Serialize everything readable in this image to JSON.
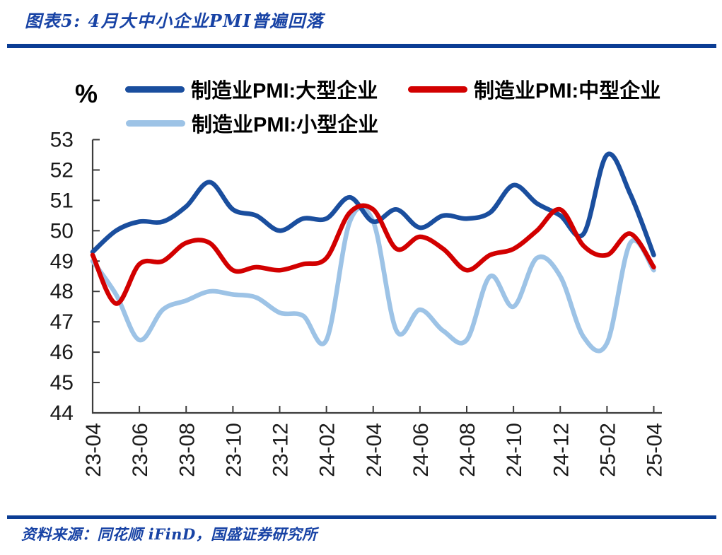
{
  "header": {
    "title": "图表5: 4月大中小企业PMI普遍回落"
  },
  "footer": {
    "source": "资料来源：同花顺 iFinD，国盛证券研究所"
  },
  "styles": {
    "rule_color": "#0B3D94",
    "title_color": "#1843A5",
    "axis_color": "#3C3C3C",
    "tick_label_color": "#1A1A1A"
  },
  "chart_data": {
    "type": "line",
    "title": "图表5: 4月大中小企业PMI普遍回落",
    "unit_label": "%",
    "xlabel": "",
    "ylabel": "%",
    "ylim": [
      44,
      53
    ],
    "ytick_interval": 1,
    "xtick_every": 2,
    "grid": false,
    "legend_position": "top-left",
    "categories": [
      "23-04",
      "23-05",
      "23-06",
      "23-07",
      "23-08",
      "23-09",
      "23-10",
      "23-11",
      "23-12",
      "24-01",
      "24-02",
      "24-03",
      "24-04",
      "24-05",
      "24-06",
      "24-07",
      "24-08",
      "24-09",
      "24-10",
      "24-11",
      "24-12",
      "25-01",
      "25-02",
      "25-03",
      "25-04"
    ],
    "x_tick_labels": [
      "23-04",
      "23-06",
      "23-08",
      "23-10",
      "23-12",
      "24-02",
      "24-04",
      "24-06",
      "24-08",
      "24-10",
      "24-12",
      "25-02",
      "25-04"
    ],
    "series": [
      {
        "name": "制造业PMI:大型企业",
        "color": "#1A4E9E",
        "values": [
          49.3,
          50.0,
          50.3,
          50.3,
          50.8,
          51.6,
          50.7,
          50.5,
          50.0,
          50.4,
          50.4,
          51.1,
          50.3,
          50.7,
          50.1,
          50.5,
          50.4,
          50.6,
          51.5,
          50.9,
          50.5,
          49.9,
          52.5,
          51.2,
          49.2
        ]
      },
      {
        "name": "制造业PMI:中型企业",
        "color": "#D20000",
        "values": [
          49.2,
          47.6,
          48.9,
          49.0,
          49.6,
          49.6,
          48.7,
          48.8,
          48.7,
          48.9,
          49.1,
          50.6,
          50.7,
          49.4,
          49.8,
          49.4,
          48.7,
          49.2,
          49.4,
          50.0,
          50.7,
          49.5,
          49.2,
          49.9,
          48.8
        ]
      },
      {
        "name": "制造业PMI:小型企业",
        "color": "#9DC3E6",
        "values": [
          49.0,
          47.9,
          46.4,
          47.4,
          47.7,
          48.0,
          47.9,
          47.8,
          47.3,
          47.2,
          46.4,
          50.3,
          50.3,
          46.7,
          47.4,
          46.7,
          46.4,
          48.5,
          47.5,
          49.1,
          48.5,
          46.5,
          46.3,
          49.6,
          48.7
        ]
      }
    ],
    "draw_order": [
      2,
      0,
      1
    ],
    "axis_color": "#3C3C3C",
    "tick_label_color": "#1A1A1A"
  }
}
